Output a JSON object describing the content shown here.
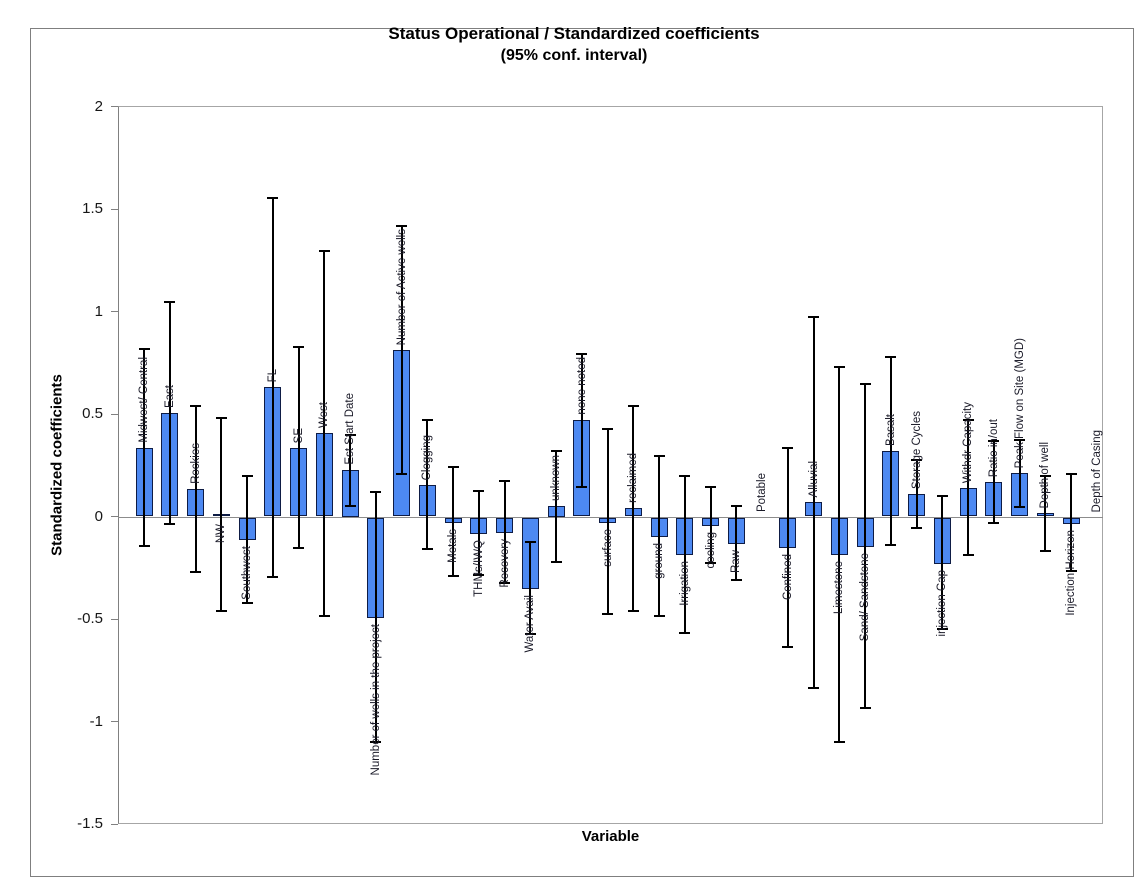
{
  "chart_data": {
    "type": "bar",
    "title": "Status Operational / Standardized coefficients",
    "subtitle": "(95% conf. interval)",
    "xlabel": "Variable",
    "ylabel": "Standardized coefficients",
    "ylim": [
      -1.5,
      2
    ],
    "grid": false,
    "legend": null,
    "error_bars": "95% confidence interval",
    "bar_color": "#4d89f2",
    "bar_border_color": "#0e1c45",
    "error_color": "#000000",
    "axis_color": "#808080",
    "frame_color": "#a6a6a6",
    "yticks": [
      {
        "label": "2",
        "v": 2
      },
      {
        "label": "1.5",
        "v": 1.5
      },
      {
        "label": "1",
        "v": 1
      },
      {
        "label": "0.5",
        "v": 0.5
      },
      {
        "label": "0",
        "v": 0
      },
      {
        "label": "-0.5",
        "v": -0.5
      },
      {
        "label": "-1",
        "v": -1
      },
      {
        "label": "-1.5",
        "v": -1.5
      }
    ],
    "points": [
      {
        "label": "Midwest/ Central",
        "value": 0.335,
        "ci_low": -0.145,
        "ci_high": 0.815,
        "label_side": "above"
      },
      {
        "label": "East",
        "value": 0.505,
        "ci_low": -0.035,
        "ci_high": 1.045,
        "label_side": "above"
      },
      {
        "label": "Rockies",
        "value": 0.135,
        "ci_low": -0.27,
        "ci_high": 0.54,
        "label_side": "above"
      },
      {
        "label": "NW",
        "value": 0.01,
        "ci_low": -0.46,
        "ci_high": 0.48,
        "label_side": "below"
      },
      {
        "label": "Southwest",
        "value": -0.11,
        "ci_low": -0.42,
        "ci_high": 0.2,
        "label_side": "below"
      },
      {
        "label": "FL",
        "value": 0.63,
        "ci_low": -0.295,
        "ci_high": 1.555,
        "label_side": "above"
      },
      {
        "label": "SE",
        "value": 0.335,
        "ci_low": -0.155,
        "ci_high": 0.825,
        "label_side": "above"
      },
      {
        "label": "West",
        "value": 0.405,
        "ci_low": -0.485,
        "ci_high": 1.295,
        "label_side": "above"
      },
      {
        "label": "Est Start Date",
        "value": 0.225,
        "ci_low": 0.05,
        "ci_high": 0.4,
        "label_side": "above"
      },
      {
        "label": "Number of wells in the project",
        "value": -0.49,
        "ci_low": -1.1,
        "ci_high": 0.12,
        "label_side": "below"
      },
      {
        "label": "Number of Active wells",
        "value": 0.81,
        "ci_low": 0.205,
        "ci_high": 1.415,
        "label_side": "above"
      },
      {
        "label": "Clogging",
        "value": 0.155,
        "ci_low": -0.16,
        "ci_high": 0.47,
        "label_side": "above"
      },
      {
        "label": "Metals",
        "value": -0.025,
        "ci_low": -0.29,
        "ci_high": 0.24,
        "label_side": "below"
      },
      {
        "label": "THMs/IWQ",
        "value": -0.08,
        "ci_low": -0.285,
        "ci_high": 0.125,
        "label_side": "below"
      },
      {
        "label": "Recovery",
        "value": -0.075,
        "ci_low": -0.325,
        "ci_high": 0.175,
        "label_side": "below"
      },
      {
        "label": "Water Avail",
        "value": -0.35,
        "ci_low": -0.575,
        "ci_high": -0.125,
        "label_side": "below"
      },
      {
        "label": "unknown",
        "value": 0.05,
        "ci_low": -0.22,
        "ci_high": 0.32,
        "label_side": "above"
      },
      {
        "label": "none noted",
        "value": 0.47,
        "ci_low": 0.145,
        "ci_high": 0.795,
        "label_side": "above"
      },
      {
        "label": "surface",
        "value": -0.025,
        "ci_low": -0.475,
        "ci_high": 0.425,
        "label_side": "below"
      },
      {
        "label": "reclaimed",
        "value": 0.04,
        "ci_low": -0.46,
        "ci_high": 0.54,
        "label_side": "above"
      },
      {
        "label": "ground",
        "value": -0.095,
        "ci_low": -0.485,
        "ci_high": 0.295,
        "label_side": "below"
      },
      {
        "label": "Irrigation",
        "value": -0.185,
        "ci_low": -0.57,
        "ci_high": 0.2,
        "label_side": "below"
      },
      {
        "label": "cooling",
        "value": -0.04,
        "ci_low": -0.225,
        "ci_high": 0.145,
        "label_side": "below"
      },
      {
        "label": "Raw",
        "value": -0.13,
        "ci_low": -0.31,
        "ci_high": 0.05,
        "label_side": "below"
      },
      {
        "label": "Potable",
        "value": 0,
        "ci_low": null,
        "ci_high": null,
        "label_side": "above"
      },
      {
        "label": "Confined",
        "value": -0.15,
        "ci_low": -0.635,
        "ci_high": 0.335,
        "label_side": "below"
      },
      {
        "label": "Alluvial",
        "value": 0.07,
        "ci_low": -0.835,
        "ci_high": 0.975,
        "label_side": "above"
      },
      {
        "label": "Limestone",
        "value": -0.185,
        "ci_low": -1.1,
        "ci_high": 0.73,
        "label_side": "below"
      },
      {
        "label": "Sand/ Sandstone",
        "value": -0.145,
        "ci_low": -0.935,
        "ci_high": 0.645,
        "label_side": "below"
      },
      {
        "label": "Basalt",
        "value": 0.32,
        "ci_low": -0.14,
        "ci_high": 0.78,
        "label_side": "above"
      },
      {
        "label": "Storage Cycles",
        "value": 0.11,
        "ci_low": -0.055,
        "ci_high": 0.275,
        "label_side": "above"
      },
      {
        "label": "injection Cap",
        "value": -0.225,
        "ci_low": -0.55,
        "ci_high": 0.1,
        "label_side": "below"
      },
      {
        "label": "Withdr Capacity",
        "value": 0.14,
        "ci_low": -0.19,
        "ci_high": 0.47,
        "label_side": "above"
      },
      {
        "label": "Ratio in/out",
        "value": 0.17,
        "ci_low": -0.03,
        "ci_high": 0.37,
        "label_side": "above"
      },
      {
        "label": "Peak Flow on Site (MGD)",
        "value": 0.21,
        "ci_low": 0.045,
        "ci_high": 0.375,
        "label_side": "above"
      },
      {
        "label": "Depth of well",
        "value": 0.015,
        "ci_low": -0.17,
        "ci_high": 0.2,
        "label_side": "above"
      },
      {
        "label": "Injection Horizon",
        "value": -0.03,
        "ci_low": -0.265,
        "ci_high": 0.205,
        "label_side": "below"
      },
      {
        "label": "Depth of Casing",
        "value": 0,
        "ci_low": null,
        "ci_high": null,
        "label_side": "above"
      }
    ]
  }
}
